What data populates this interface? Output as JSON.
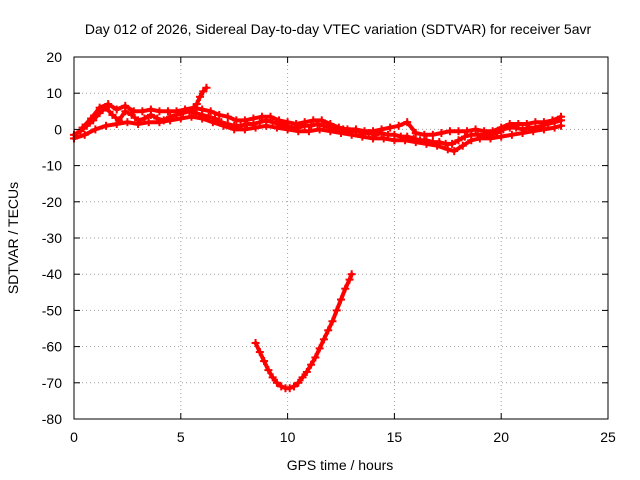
{
  "chart_data": {
    "type": "scatter",
    "title": "Day 012 of 2026, Sidereal Day-to-day VTEC variation (SDTVAR) for receiver 5avr",
    "xlabel": "GPS time / hours",
    "ylabel": "SDTVAR / TECUs",
    "xlim": [
      0,
      25
    ],
    "ylim": [
      -80,
      20
    ],
    "x_ticks": [
      "0",
      "5",
      "10",
      "15",
      "20",
      "25"
    ],
    "y_ticks": [
      "20",
      "10",
      "0",
      "-10",
      "-20",
      "-30",
      "-40",
      "-50",
      "-60",
      "-70",
      "-80"
    ],
    "grid": true,
    "series_color": "#ff0000",
    "series": [
      {
        "name": "main-band",
        "points": [
          [
            0.0,
            -1.5
          ],
          [
            0.3,
            -0.5
          ],
          [
            0.6,
            1.0
          ],
          [
            0.9,
            2.5
          ],
          [
            1.2,
            4.5
          ],
          [
            1.5,
            6.0
          ],
          [
            1.8,
            4.0
          ],
          [
            2.1,
            2.5
          ],
          [
            2.4,
            5.0
          ],
          [
            2.7,
            4.0
          ],
          [
            3.0,
            2.5
          ],
          [
            3.3,
            3.0
          ],
          [
            3.6,
            4.0
          ],
          [
            3.9,
            3.0
          ],
          [
            4.2,
            2.5
          ],
          [
            4.5,
            3.5
          ],
          [
            4.8,
            4.0
          ],
          [
            5.1,
            4.5
          ],
          [
            5.4,
            5.0
          ],
          [
            5.7,
            4.5
          ],
          [
            6.0,
            4.0
          ],
          [
            6.3,
            3.5
          ],
          [
            6.6,
            3.0
          ],
          [
            6.9,
            2.0
          ],
          [
            7.2,
            1.5
          ],
          [
            7.5,
            1.0
          ],
          [
            7.8,
            1.0
          ],
          [
            8.1,
            1.5
          ],
          [
            8.4,
            1.5
          ],
          [
            8.7,
            2.0
          ],
          [
            9.0,
            2.5
          ],
          [
            9.3,
            2.0
          ],
          [
            9.6,
            1.5
          ],
          [
            9.9,
            1.0
          ],
          [
            10.2,
            0.5
          ],
          [
            10.5,
            0.5
          ],
          [
            10.8,
            1.0
          ],
          [
            11.1,
            1.0
          ],
          [
            11.4,
            1.5
          ],
          [
            11.7,
            1.0
          ],
          [
            12.0,
            0.5
          ],
          [
            12.3,
            0.0
          ],
          [
            12.6,
            0.0
          ],
          [
            12.9,
            -0.5
          ],
          [
            13.2,
            -0.5
          ],
          [
            13.5,
            -1.0
          ],
          [
            13.8,
            -1.0
          ],
          [
            14.1,
            -1.5
          ],
          [
            14.4,
            -1.0
          ],
          [
            14.7,
            -1.5
          ],
          [
            15.0,
            -1.5
          ],
          [
            15.3,
            -2.0
          ],
          [
            15.6,
            -2.0
          ],
          [
            15.9,
            -2.5
          ],
          [
            16.2,
            -3.0
          ],
          [
            16.5,
            -3.0
          ],
          [
            16.8,
            -3.5
          ],
          [
            17.1,
            -3.5
          ],
          [
            17.4,
            -4.0
          ],
          [
            17.7,
            -4.0
          ],
          [
            18.0,
            -3.0
          ],
          [
            18.3,
            -2.0
          ],
          [
            18.6,
            -1.5
          ],
          [
            18.9,
            -1.5
          ],
          [
            19.2,
            -1.5
          ],
          [
            19.5,
            -1.5
          ],
          [
            19.8,
            -1.0
          ],
          [
            20.1,
            0.0
          ],
          [
            20.4,
            0.5
          ],
          [
            20.7,
            0.5
          ],
          [
            21.0,
            0.0
          ],
          [
            21.3,
            0.5
          ],
          [
            21.6,
            0.5
          ],
          [
            21.9,
            1.0
          ],
          [
            22.2,
            1.5
          ],
          [
            22.5,
            2.0
          ],
          [
            22.8,
            2.5
          ]
        ]
      },
      {
        "name": "upper-envelope",
        "points": [
          [
            0.4,
            0.5
          ],
          [
            0.8,
            3.0
          ],
          [
            1.2,
            6.0
          ],
          [
            1.6,
            7.0
          ],
          [
            2.0,
            5.5
          ],
          [
            2.4,
            6.5
          ],
          [
            2.8,
            5.0
          ],
          [
            3.2,
            5.0
          ],
          [
            3.6,
            5.5
          ],
          [
            4.0,
            5.0
          ],
          [
            4.4,
            5.0
          ],
          [
            4.8,
            5.0
          ],
          [
            5.2,
            5.5
          ],
          [
            5.6,
            6.0
          ],
          [
            6.0,
            5.5
          ],
          [
            6.4,
            5.0
          ],
          [
            6.8,
            4.0
          ],
          [
            7.2,
            3.5
          ],
          [
            7.6,
            2.5
          ],
          [
            8.0,
            2.5
          ],
          [
            8.4,
            3.0
          ],
          [
            8.8,
            3.5
          ],
          [
            9.2,
            3.5
          ],
          [
            9.6,
            2.5
          ],
          [
            10.0,
            2.0
          ],
          [
            10.4,
            1.5
          ],
          [
            10.8,
            2.0
          ],
          [
            11.2,
            2.5
          ],
          [
            11.6,
            2.5
          ],
          [
            12.0,
            1.5
          ],
          [
            12.4,
            0.5
          ],
          [
            12.8,
            0.0
          ],
          [
            13.2,
            0.0
          ],
          [
            13.6,
            -0.5
          ],
          [
            14.0,
            -0.5
          ],
          [
            14.4,
            0.0
          ],
          [
            14.8,
            0.5
          ],
          [
            15.2,
            1.0
          ],
          [
            15.6,
            2.0
          ],
          [
            16.0,
            -1.0
          ],
          [
            16.4,
            -1.5
          ],
          [
            16.8,
            -1.5
          ],
          [
            17.2,
            -1.0
          ],
          [
            17.6,
            -0.5
          ],
          [
            18.0,
            -0.5
          ],
          [
            18.4,
            -0.5
          ],
          [
            18.8,
            0.0
          ],
          [
            19.2,
            -0.5
          ],
          [
            19.6,
            -0.5
          ],
          [
            20.0,
            0.5
          ],
          [
            20.4,
            1.5
          ],
          [
            20.8,
            1.5
          ],
          [
            21.2,
            1.5
          ],
          [
            21.6,
            2.0
          ],
          [
            22.0,
            2.0
          ],
          [
            22.4,
            2.5
          ],
          [
            22.8,
            3.5
          ]
        ]
      },
      {
        "name": "lower-envelope",
        "points": [
          [
            0.0,
            -2.5
          ],
          [
            0.5,
            -1.5
          ],
          [
            1.0,
            0.0
          ],
          [
            1.5,
            1.0
          ],
          [
            2.0,
            1.5
          ],
          [
            2.5,
            2.0
          ],
          [
            3.0,
            1.5
          ],
          [
            3.5,
            2.0
          ],
          [
            4.0,
            2.0
          ],
          [
            4.5,
            2.5
          ],
          [
            5.0,
            3.0
          ],
          [
            5.5,
            3.5
          ],
          [
            6.0,
            3.0
          ],
          [
            6.5,
            2.0
          ],
          [
            7.0,
            1.0
          ],
          [
            7.5,
            0.0
          ],
          [
            8.0,
            0.0
          ],
          [
            8.5,
            0.5
          ],
          [
            9.0,
            1.0
          ],
          [
            9.5,
            0.5
          ],
          [
            10.0,
            0.0
          ],
          [
            10.5,
            -0.5
          ],
          [
            11.0,
            -0.5
          ],
          [
            11.5,
            0.0
          ],
          [
            12.0,
            -0.5
          ],
          [
            12.5,
            -1.0
          ],
          [
            13.0,
            -1.5
          ],
          [
            13.5,
            -2.0
          ],
          [
            14.0,
            -2.5
          ],
          [
            14.5,
            -2.5
          ],
          [
            15.0,
            -3.0
          ],
          [
            15.5,
            -3.0
          ],
          [
            16.0,
            -3.5
          ],
          [
            16.5,
            -4.0
          ],
          [
            17.0,
            -4.5
          ],
          [
            17.5,
            -5.5
          ],
          [
            17.8,
            -6.0
          ],
          [
            18.2,
            -4.5
          ],
          [
            18.6,
            -3.0
          ],
          [
            19.0,
            -2.5
          ],
          [
            19.5,
            -2.5
          ],
          [
            20.0,
            -2.0
          ],
          [
            20.5,
            -1.5
          ],
          [
            21.0,
            -1.0
          ],
          [
            21.5,
            -0.5
          ],
          [
            22.0,
            0.0
          ],
          [
            22.5,
            0.5
          ],
          [
            22.8,
            1.0
          ]
        ]
      },
      {
        "name": "spike",
        "points": [
          [
            5.6,
            5.0
          ],
          [
            5.75,
            7.0
          ],
          [
            5.9,
            9.0
          ],
          [
            6.05,
            10.5
          ],
          [
            6.2,
            11.5
          ]
        ]
      },
      {
        "name": "dip-arc",
        "points": [
          [
            8.5,
            -59.0
          ],
          [
            8.7,
            -61.5
          ],
          [
            8.9,
            -64.0
          ],
          [
            9.1,
            -66.5
          ],
          [
            9.3,
            -68.5
          ],
          [
            9.5,
            -70.0
          ],
          [
            9.7,
            -71.0
          ],
          [
            9.9,
            -71.5
          ],
          [
            10.1,
            -71.5
          ],
          [
            10.3,
            -71.0
          ],
          [
            10.5,
            -70.0
          ],
          [
            10.7,
            -68.5
          ],
          [
            10.9,
            -67.0
          ],
          [
            11.1,
            -65.0
          ],
          [
            11.3,
            -63.0
          ],
          [
            11.5,
            -60.5
          ],
          [
            11.7,
            -58.0
          ],
          [
            11.9,
            -55.5
          ],
          [
            12.1,
            -53.0
          ],
          [
            12.3,
            -50.0
          ],
          [
            12.5,
            -47.0
          ],
          [
            12.7,
            -44.0
          ],
          [
            12.9,
            -41.5
          ],
          [
            13.0,
            -40.0
          ]
        ]
      }
    ]
  }
}
